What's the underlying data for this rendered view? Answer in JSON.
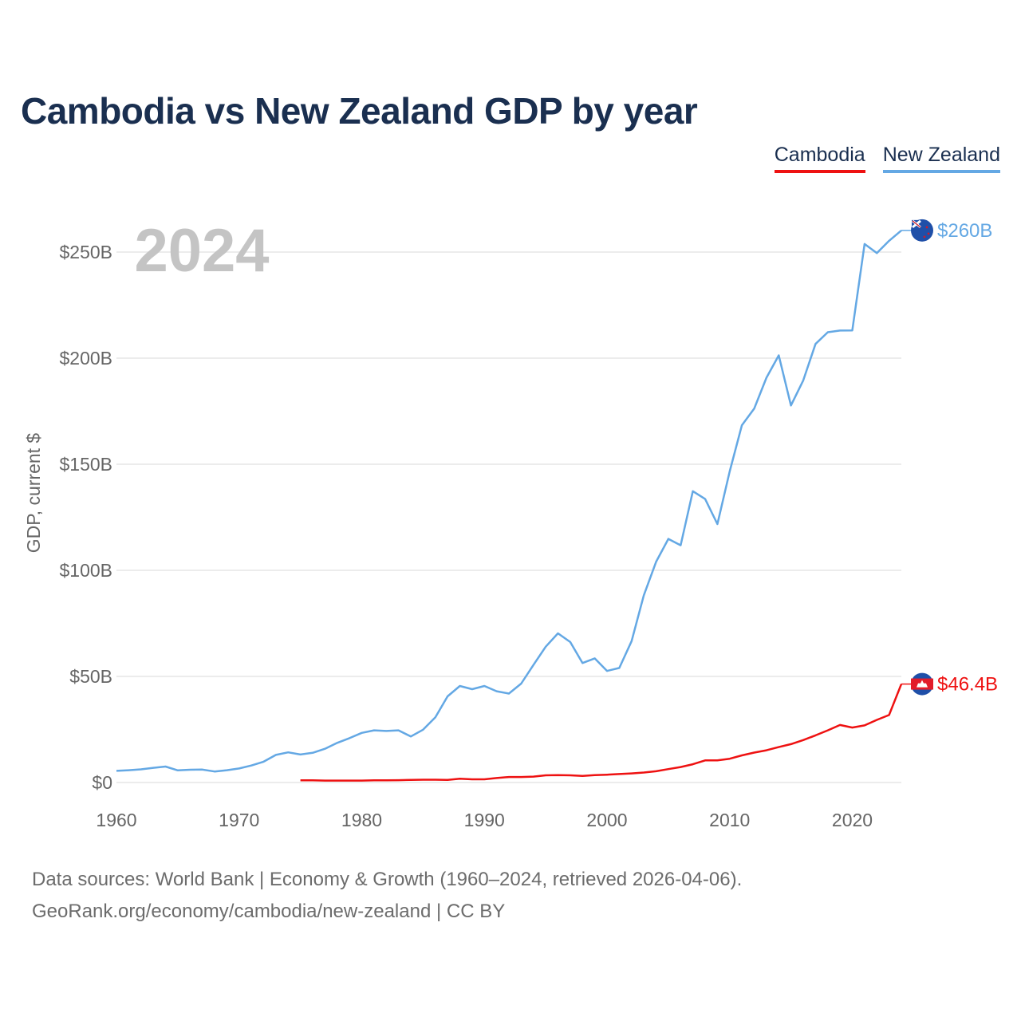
{
  "title": "Cambodia vs New Zealand GDP by year",
  "legend": {
    "cambodia": "Cambodia",
    "new_zealand": "New Zealand"
  },
  "year_label": "2024",
  "end_labels": {
    "cambodia": "$46.4B",
    "new_zealand": "$260B"
  },
  "footer": {
    "line1": "Data sources: World Bank | Economy & Growth (1960–2024, retrieved 2026-04-06).",
    "line2": "GeoRank.org/economy/cambodia/new-zealand | CC BY"
  },
  "colors": {
    "cambodia": "#ee1111",
    "new_zealand": "#64a8e4",
    "title": "#1a2f50",
    "grid": "#e6e6e6",
    "axis_text": "#666666",
    "year": "#c4c4c4"
  },
  "chart_data": {
    "type": "line",
    "title": "Cambodia vs New Zealand GDP by year",
    "xlabel": "",
    "ylabel": "GDP, current $",
    "xlim": [
      1960,
      2024
    ],
    "ylim": [
      0,
      260
    ],
    "unit": "billion USD",
    "x_ticks": [
      1960,
      1970,
      1980,
      1990,
      2000,
      2010,
      2020
    ],
    "x_tick_labels": [
      "1960",
      "1970",
      "1980",
      "1990",
      "2000",
      "2010",
      "2020"
    ],
    "y_ticks": [
      0,
      50,
      100,
      150,
      200,
      250
    ],
    "y_tick_labels": [
      "$0",
      "$50B",
      "$100B",
      "$150B",
      "$200B",
      "$250B"
    ],
    "grid": true,
    "legend_position": "top-right",
    "series": [
      {
        "name": "New Zealand",
        "x": [
          1960,
          1961,
          1962,
          1963,
          1964,
          1965,
          1966,
          1967,
          1968,
          1969,
          1970,
          1971,
          1972,
          1973,
          1974,
          1975,
          1976,
          1977,
          1978,
          1979,
          1980,
          1981,
          1982,
          1983,
          1984,
          1985,
          1986,
          1987,
          1988,
          1989,
          1990,
          1991,
          1992,
          1993,
          1994,
          1995,
          1996,
          1997,
          1998,
          1999,
          2000,
          2001,
          2002,
          2003,
          2004,
          2005,
          2006,
          2007,
          2008,
          2009,
          2010,
          2011,
          2012,
          2013,
          2014,
          2015,
          2016,
          2017,
          2018,
          2019,
          2020,
          2021,
          2022,
          2023,
          2024
        ],
        "values": [
          5.5,
          5.8,
          6.2,
          6.9,
          7.5,
          5.7,
          6.0,
          6.1,
          5.2,
          5.8,
          6.6,
          8.0,
          9.8,
          13.0,
          14.2,
          13.2,
          14.0,
          15.9,
          18.7,
          20.9,
          23.4,
          24.6,
          24.3,
          24.6,
          21.7,
          24.9,
          30.7,
          40.6,
          45.5,
          44.0,
          45.5,
          43.0,
          41.9,
          46.6,
          55.4,
          64.0,
          70.3,
          66.2,
          56.3,
          58.5,
          52.6,
          54.0,
          66.6,
          88.2,
          104.0,
          114.8,
          111.8,
          137.3,
          133.6,
          121.8,
          146.6,
          168.4,
          176.2,
          190.8,
          201.3,
          177.7,
          189.5,
          206.7,
          212.2,
          213.0,
          213.1,
          253.8,
          249.5,
          255.3,
          260.2
        ]
      },
      {
        "name": "Cambodia",
        "x": [
          1975,
          1976,
          1977,
          1978,
          1979,
          1980,
          1981,
          1982,
          1983,
          1984,
          1985,
          1986,
          1987,
          1988,
          1989,
          1990,
          1991,
          1992,
          1993,
          1994,
          1995,
          1996,
          1997,
          1998,
          1999,
          2000,
          2001,
          2002,
          2003,
          2004,
          2005,
          2006,
          2007,
          2008,
          2009,
          2010,
          2011,
          2012,
          2013,
          2014,
          2015,
          2016,
          2017,
          2018,
          2019,
          2020,
          2021,
          2022,
          2023,
          2024
        ],
        "values": [
          1.0,
          1.0,
          0.9,
          0.9,
          0.9,
          0.9,
          1.0,
          1.0,
          1.1,
          1.2,
          1.3,
          1.3,
          1.2,
          1.8,
          1.5,
          1.5,
          2.1,
          2.6,
          2.6,
          2.8,
          3.4,
          3.5,
          3.4,
          3.1,
          3.5,
          3.7,
          4.0,
          4.3,
          4.7,
          5.3,
          6.3,
          7.3,
          8.6,
          10.4,
          10.4,
          11.2,
          12.8,
          14.1,
          15.2,
          16.7,
          18.1,
          20.0,
          22.2,
          24.6,
          27.1,
          25.9,
          26.9,
          29.5,
          31.8,
          46.4
        ]
      }
    ]
  }
}
